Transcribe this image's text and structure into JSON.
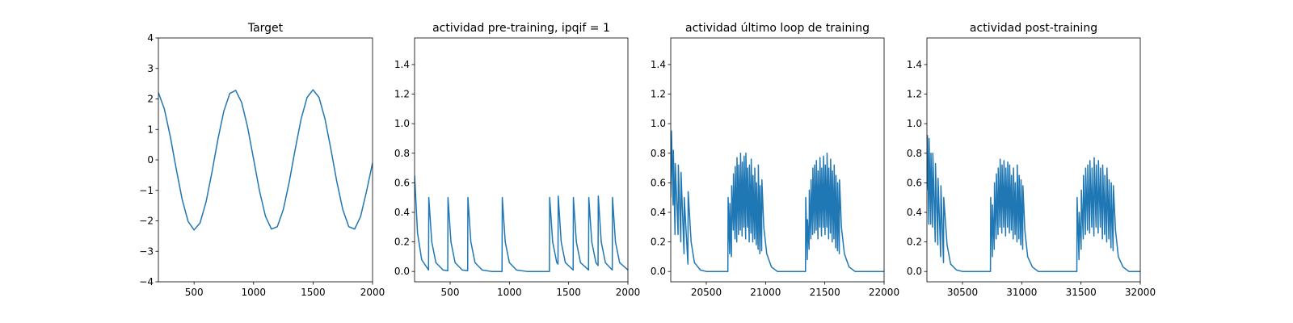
{
  "chart_data": [
    {
      "type": "line",
      "title": "Target",
      "color": "#1f77b4",
      "x": [
        200,
        250,
        300,
        350,
        400,
        450,
        500,
        550,
        600,
        650,
        700,
        750,
        800,
        850,
        900,
        950,
        1000,
        1050,
        1100,
        1150,
        1200,
        1250,
        1300,
        1350,
        1400,
        1450,
        1500,
        1550,
        1600,
        1650,
        1700,
        1750,
        1800,
        1850,
        1900,
        1950,
        2000
      ],
      "values": [
        2.21,
        1.67,
        0.77,
        -0.3,
        -1.3,
        -2.02,
        -2.3,
        -2.07,
        -1.39,
        -0.41,
        0.67,
        1.6,
        2.18,
        2.28,
        1.88,
        1.07,
        0.03,
        -1.02,
        -1.85,
        -2.27,
        -2.19,
        -1.63,
        -0.72,
        0.35,
        1.35,
        2.05,
        2.3,
        2.05,
        1.35,
        0.35,
        -0.72,
        -1.63,
        -2.19,
        -2.27,
        -1.85,
        -1.02,
        -0.1
      ],
      "xlim": [
        200,
        2000
      ],
      "xticks": [
        500,
        1000,
        1500,
        2000
      ],
      "ylim": [
        -4,
        4
      ],
      "yticks": [
        {
          "value": -4,
          "label": "−4"
        },
        {
          "value": -3,
          "label": "−3"
        },
        {
          "value": -2,
          "label": "−2"
        },
        {
          "value": -1,
          "label": "−1"
        },
        0,
        1,
        2,
        3,
        4
      ]
    },
    {
      "type": "line",
      "title": "actividad pre-training, ipqif = 1",
      "color": "#1f77b4",
      "x": [
        200,
        225,
        260,
        318,
        320,
        345,
        380,
        440,
        480,
        482,
        507,
        542,
        602,
        648,
        650,
        675,
        710,
        770,
        850,
        938,
        940,
        965,
        1000,
        1060,
        1150,
        1338,
        1340,
        1365,
        1400,
        1410,
        1412,
        1437,
        1472,
        1538,
        1540,
        1565,
        1600,
        1668,
        1670,
        1695,
        1730,
        1748,
        1750,
        1775,
        1810,
        1868,
        1870,
        1895,
        1930,
        2000
      ],
      "values": [
        0.65,
        0.26,
        0.08,
        0.01,
        0.5,
        0.2,
        0.06,
        0.01,
        0.005,
        0.5,
        0.2,
        0.06,
        0.01,
        0.005,
        0.5,
        0.2,
        0.06,
        0.01,
        0,
        0,
        0.5,
        0.2,
        0.06,
        0.01,
        0,
        0,
        0.5,
        0.2,
        0.06,
        0.05,
        0.51,
        0.2,
        0.06,
        0.01,
        0.5,
        0.2,
        0.06,
        0.01,
        0.5,
        0.2,
        0.06,
        0.04,
        0.51,
        0.2,
        0.06,
        0.01,
        0.5,
        0.2,
        0.06,
        0.01
      ],
      "xlim": [
        200,
        2000
      ],
      "xticks": [
        500,
        1000,
        1500,
        2000
      ],
      "ylim": [
        -0.07,
        1.58
      ],
      "yticks": [
        {
          "value": 0,
          "label": "0.0"
        },
        0.2,
        0.4,
        0.6,
        0.8,
        {
          "value": 1,
          "label": "1.0"
        },
        1.2,
        1.4
      ]
    },
    {
      "type": "line",
      "title": "actividad último loop de training",
      "color": "#1f77b4",
      "x": [
        20200,
        20206,
        20220,
        20222,
        20236,
        20238,
        20262,
        20264,
        20285,
        20287,
        20312,
        20314,
        20345,
        20347,
        20372,
        20400,
        20450,
        20500,
        20682,
        20684,
        20697,
        20699,
        20712,
        20714,
        20727,
        20729,
        20742,
        20744,
        20757,
        20759,
        20772,
        20774,
        20787,
        20789,
        20802,
        20804,
        20817,
        20819,
        20832,
        20834,
        20847,
        20849,
        20862,
        20864,
        20877,
        20879,
        20892,
        20894,
        20907,
        20909,
        20922,
        20924,
        20937,
        20939,
        20952,
        20954,
        20967,
        20969,
        20985,
        21010,
        21050,
        21100,
        21337,
        21339,
        21352,
        21354,
        21367,
        21369,
        21382,
        21384,
        21397,
        21399,
        21412,
        21414,
        21427,
        21429,
        21442,
        21444,
        21457,
        21459,
        21472,
        21474,
        21487,
        21489,
        21502,
        21504,
        21517,
        21519,
        21532,
        21534,
        21547,
        21549,
        21562,
        21564,
        21577,
        21579,
        21592,
        21594,
        21607,
        21609,
        21622,
        21624,
        21640,
        21665,
        21705,
        21755,
        22000
      ],
      "values": [
        0.5,
        0.95,
        0.45,
        0.82,
        0.25,
        0.73,
        0.25,
        0.72,
        0.2,
        0.67,
        0.12,
        0.5,
        0.05,
        0.54,
        0.2,
        0.06,
        0.01,
        0,
        0,
        0.5,
        0.12,
        0.46,
        0.1,
        0.58,
        0.28,
        0.66,
        0.22,
        0.71,
        0.2,
        0.77,
        0.25,
        0.72,
        0.28,
        0.8,
        0.24,
        0.74,
        0.3,
        0.78,
        0.22,
        0.8,
        0.3,
        0.7,
        0.2,
        0.72,
        0.26,
        0.76,
        0.2,
        0.65,
        0.22,
        0.7,
        0.18,
        0.6,
        0.15,
        0.72,
        0.12,
        0.58,
        0.14,
        0.62,
        0.3,
        0.12,
        0.03,
        0,
        0,
        0.5,
        0.08,
        0.35,
        0.15,
        0.55,
        0.22,
        0.62,
        0.25,
        0.7,
        0.26,
        0.72,
        0.28,
        0.75,
        0.22,
        0.68,
        0.3,
        0.77,
        0.24,
        0.7,
        0.3,
        0.78,
        0.25,
        0.72,
        0.3,
        0.8,
        0.22,
        0.7,
        0.26,
        0.76,
        0.2,
        0.68,
        0.22,
        0.72,
        0.16,
        0.65,
        0.14,
        0.6,
        0.12,
        0.62,
        0.3,
        0.12,
        0.03,
        0,
        0
      ],
      "xlim": [
        20200,
        22000
      ],
      "xticks": [
        20500,
        21000,
        21500,
        22000
      ],
      "ylim": [
        -0.07,
        1.58
      ],
      "yticks": [
        {
          "value": 0,
          "label": "0.0"
        },
        0.2,
        0.4,
        0.6,
        0.8,
        {
          "value": 1,
          "label": "1.0"
        },
        1.2,
        1.4
      ]
    },
    {
      "type": "line",
      "title": "actividad post-training",
      "color": "#1f77b4",
      "x": [
        30200,
        30204,
        30216,
        30218,
        30232,
        30234,
        30248,
        30250,
        30270,
        30272,
        30292,
        30294,
        30316,
        30318,
        30340,
        30342,
        30370,
        30400,
        30450,
        30500,
        30736,
        30738,
        30752,
        30754,
        30768,
        30770,
        30784,
        30786,
        30800,
        30802,
        30816,
        30818,
        30832,
        30834,
        30848,
        30850,
        30864,
        30866,
        30880,
        30882,
        30896,
        30898,
        30912,
        30914,
        30928,
        30930,
        30944,
        30946,
        30960,
        30962,
        30976,
        30978,
        30992,
        30994,
        31008,
        31010,
        31026,
        31050,
        31090,
        31140,
        31465,
        31467,
        31483,
        31485,
        31501,
        31503,
        31519,
        31521,
        31537,
        31539,
        31555,
        31557,
        31573,
        31575,
        31591,
        31593,
        31609,
        31611,
        31627,
        31629,
        31645,
        31647,
        31663,
        31665,
        31681,
        31683,
        31699,
        31701,
        31717,
        31719,
        31735,
        31737,
        31753,
        31755,
        31771,
        31773,
        31791,
        31815,
        31855,
        31905,
        32000
      ],
      "values": [
        0.55,
        0.92,
        0.32,
        0.9,
        0.32,
        0.8,
        0.3,
        0.8,
        0.2,
        0.73,
        0.18,
        0.63,
        0.1,
        0.58,
        0.06,
        0.5,
        0.18,
        0.05,
        0.01,
        0,
        0,
        0.5,
        0.1,
        0.45,
        0.15,
        0.6,
        0.22,
        0.66,
        0.25,
        0.7,
        0.3,
        0.76,
        0.26,
        0.72,
        0.3,
        0.75,
        0.24,
        0.7,
        0.3,
        0.74,
        0.26,
        0.72,
        0.28,
        0.65,
        0.22,
        0.7,
        0.25,
        0.6,
        0.2,
        0.72,
        0.22,
        0.65,
        0.18,
        0.62,
        0.15,
        0.58,
        0.28,
        0.1,
        0.03,
        0,
        0,
        0.5,
        0.08,
        0.4,
        0.15,
        0.55,
        0.22,
        0.65,
        0.25,
        0.7,
        0.28,
        0.72,
        0.26,
        0.75,
        0.3,
        0.7,
        0.24,
        0.77,
        0.3,
        0.72,
        0.26,
        0.75,
        0.3,
        0.7,
        0.22,
        0.72,
        0.25,
        0.65,
        0.2,
        0.7,
        0.22,
        0.62,
        0.16,
        0.6,
        0.14,
        0.58,
        0.28,
        0.1,
        0.03,
        0,
        0
      ],
      "xlim": [
        30200,
        32000
      ],
      "xticks": [
        30500,
        31000,
        31500,
        32000
      ],
      "ylim": [
        -0.07,
        1.58
      ],
      "yticks": [
        {
          "value": 0,
          "label": "0.0"
        },
        0.2,
        0.4,
        0.6,
        0.8,
        {
          "value": 1,
          "label": "1.0"
        },
        1.2,
        1.4
      ]
    }
  ]
}
